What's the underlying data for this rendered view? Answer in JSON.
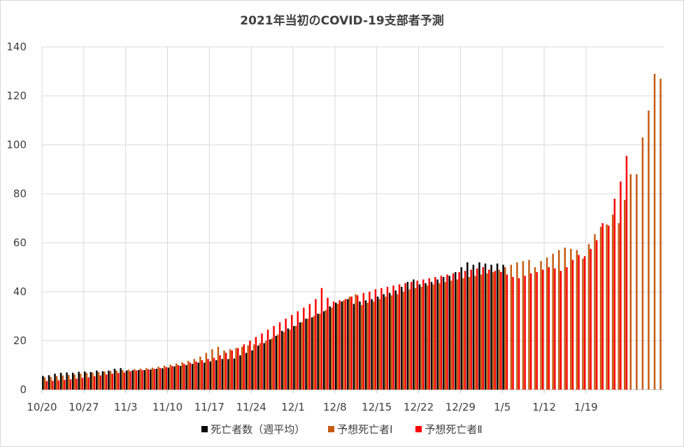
{
  "chart_data": {
    "type": "bar",
    "title": "2021年当初のCOVID-19支部者予測",
    "xlabel": "",
    "ylabel": "",
    "ylim": [
      0,
      140
    ],
    "yticks": [
      0,
      20,
      40,
      60,
      80,
      100,
      120,
      140
    ],
    "x_tick_labels": [
      "10/20",
      "10/27",
      "11/3",
      "11/10",
      "11/17",
      "11/24",
      "12/1",
      "12/8",
      "12/15",
      "12/22",
      "12/29",
      "1/5",
      "1/12",
      "1/19"
    ],
    "grid": true,
    "legend_position": "bottom",
    "start_date": "10/20",
    "series": [
      {
        "name": "死亡者数（週平均）",
        "color": "#000000",
        "values": [
          5.6,
          5.9,
          6.5,
          6.9,
          7.0,
          6.9,
          7.3,
          7.4,
          7.2,
          7.8,
          7.5,
          7.8,
          8.5,
          8.8,
          7.8,
          7.9,
          8.0,
          8.0,
          8.2,
          8.5,
          8.7,
          9.0,
          9.5,
          9.7,
          10.0,
          10.5,
          11.0,
          11.0,
          11.5,
          12.0,
          12.5,
          12.5,
          12.7,
          14.0,
          15.0,
          16.0,
          18.0,
          19.0,
          20.5,
          22.0,
          24.0,
          25.0,
          26.0,
          27.5,
          29.0,
          29.5,
          31.0,
          32.0,
          34.0,
          35.5,
          36.0,
          37.0,
          35.0,
          36.0,
          36.5,
          37.0,
          38.0,
          39.0,
          39.5,
          40.5,
          42.0,
          44.0,
          45.0,
          43.0,
          43.5,
          44.0,
          45.0,
          46.0,
          46.5,
          48.0,
          50.0,
          52.0,
          51.0,
          52.0,
          51.5,
          51.0,
          51.5,
          51.0
        ],
        "note": ""
      },
      {
        "name": "予想死亡者Ⅰ",
        "color": "#C55A11",
        "values": [
          5.0,
          5.2,
          5.5,
          5.8,
          6.0,
          6.2,
          6.5,
          6.8,
          7.0,
          7.2,
          7.4,
          7.6,
          7.8,
          8.0,
          8.2,
          8.4,
          8.6,
          8.8,
          9.0,
          9.4,
          9.8,
          10.2,
          10.7,
          11.2,
          11.8,
          12.5,
          13.5,
          15.0,
          16.5,
          17.5,
          16.0,
          16.5,
          17.0,
          17.5,
          18.0,
          18.5,
          19.0,
          20.0,
          21.0,
          22.5,
          23.5,
          24.5,
          26.0,
          27.5,
          29.0,
          30.0,
          31.0,
          32.5,
          33.5,
          35.0,
          36.5,
          38.0,
          39.0,
          34.5,
          35.5,
          36.0,
          37.0,
          38.0,
          38.5,
          39.0,
          40.0,
          41.0,
          41.5,
          42.0,
          42.5,
          43.0,
          43.5,
          44.0,
          44.5,
          45.0,
          45.5,
          46.0,
          46.5,
          47.0,
          47.5,
          48.0,
          49.0,
          50.0,
          51.0,
          52.0,
          52.5,
          53.0,
          50.0,
          52.5,
          54.0,
          55.5,
          57.0,
          58.0,
          57.5,
          57.0,
          53.5,
          59.5,
          63.5,
          66.5,
          67.5,
          71.5,
          68.0,
          77.5,
          88.0,
          88.0,
          103.0,
          114.0,
          129.0,
          127.0
        ],
        "note": ""
      },
      {
        "name": "予想死亡者Ⅱ",
        "color": "#FF0000",
        "values": [
          3.5,
          3.6,
          3.8,
          4.0,
          4.2,
          4.5,
          4.8,
          5.0,
          5.5,
          5.8,
          6.2,
          6.5,
          6.8,
          7.0,
          7.5,
          7.8,
          8.0,
          8.3,
          8.5,
          8.8,
          9.2,
          9.6,
          10.0,
          10.5,
          11.0,
          11.5,
          12.0,
          12.5,
          13.0,
          14.0,
          15.0,
          16.0,
          17.0,
          18.5,
          20.0,
          21.5,
          23.0,
          24.5,
          26.0,
          27.5,
          29.0,
          30.5,
          32.0,
          33.5,
          35.0,
          37.0,
          41.5,
          37.5,
          36.0,
          36.5,
          37.0,
          38.0,
          38.5,
          39.5,
          40.0,
          41.0,
          41.5,
          42.0,
          42.5,
          43.0,
          43.5,
          44.0,
          44.5,
          45.0,
          45.5,
          46.0,
          46.5,
          47.0,
          47.5,
          48.0,
          48.5,
          49.0,
          49.5,
          50.0,
          49.0,
          48.5,
          48.0,
          47.0,
          46.0,
          45.5,
          46.5,
          47.5,
          48.0,
          49.0,
          50.0,
          49.5,
          48.5,
          50.0,
          53.0,
          55.0,
          54.5,
          57.5,
          61.0,
          68.0,
          67.0,
          78.0,
          85.0,
          95.5
        ],
        "note": ""
      }
    ]
  },
  "legend": {
    "items": [
      "死亡者数（週平均）",
      "予想死亡者Ⅰ",
      "予想死亡者Ⅱ"
    ]
  }
}
